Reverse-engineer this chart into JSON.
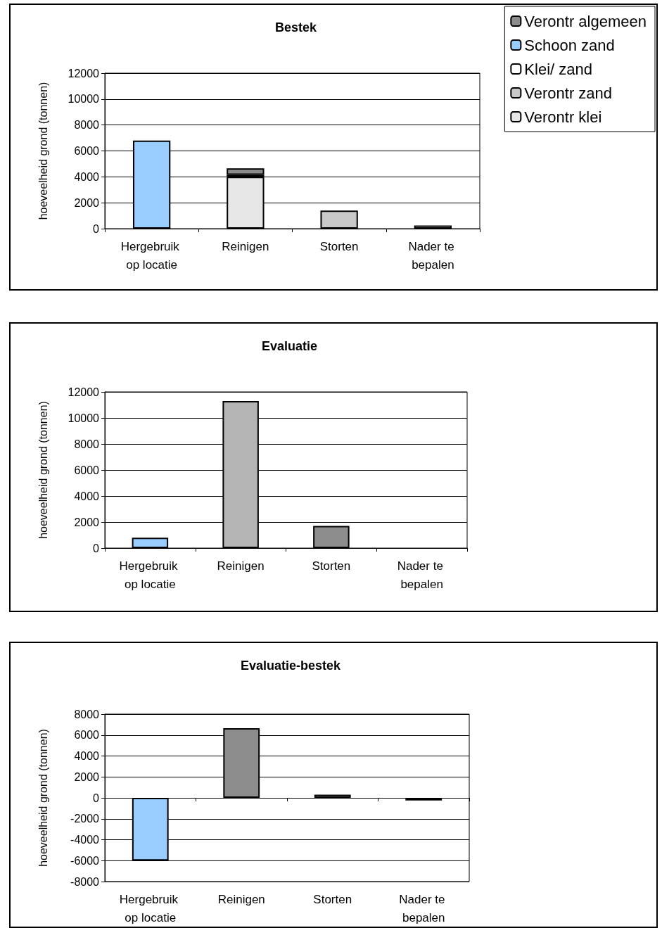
{
  "chart_data": [
    {
      "type": "bar",
      "title": "Bestek",
      "ylabel": "hoeveelheid grond (tonnen)",
      "categories": [
        "Hergebruik op locatie",
        "Reinigen",
        "Storten",
        "Nader te bepalen"
      ],
      "stacked": true,
      "series": [
        {
          "name": "Verontr klei",
          "color": "#e6e6e6",
          "values": [
            null,
            4000,
            null,
            null
          ]
        },
        {
          "name": "Verontr zand",
          "color": "#c8c8c8",
          "values": [
            null,
            null,
            1400,
            null
          ]
        },
        {
          "name": "Klei/ zand",
          "color": "#ffffff",
          "values": [
            null,
            150,
            null,
            250
          ]
        },
        {
          "name": "Schoon zand",
          "color": "#99ccff",
          "values": [
            6800,
            null,
            null,
            null
          ]
        },
        {
          "name": "Verontr algemeen",
          "color": "#8c8c8c",
          "values": [
            null,
            500,
            null,
            null
          ]
        }
      ],
      "ylim": [
        0,
        12000
      ],
      "yticks": [
        0,
        2000,
        4000,
        6000,
        8000,
        10000,
        12000
      ],
      "grid": "y",
      "legend": "top right"
    },
    {
      "type": "bar",
      "title": "Evaluatie",
      "ylabel": "hoeveelheid grond (tonnen)",
      "categories": [
        "Hergebruik op locatie",
        "Reinigen",
        "Storten",
        "Nader te bepalen"
      ],
      "values": [
        800,
        11300,
        1700,
        null
      ],
      "colors": [
        "#99ccff",
        "#b4b4b4",
        "#8c8c8c",
        "#ffffff"
      ],
      "ylim": [
        0,
        12000
      ],
      "yticks": [
        0,
        2000,
        4000,
        6000,
        8000,
        10000,
        12000
      ],
      "grid": "y"
    },
    {
      "type": "bar",
      "title": "Evaluatie-bestek",
      "ylabel": "hoeveelheid grond (tonnen)",
      "categories": [
        "Hergebruik op locatie",
        "Reinigen",
        "Storten",
        "Nader te bepalen"
      ],
      "values": [
        -6000,
        6650,
        300,
        -250
      ],
      "colors": [
        "#99ccff",
        "#8c8c8c",
        "#a0a0a0",
        "#ffffff"
      ],
      "ylim": [
        -8000,
        8000
      ],
      "yticks": [
        -8000,
        -6000,
        -4000,
        -2000,
        0,
        2000,
        4000,
        6000,
        8000
      ],
      "grid": "y"
    }
  ]
}
